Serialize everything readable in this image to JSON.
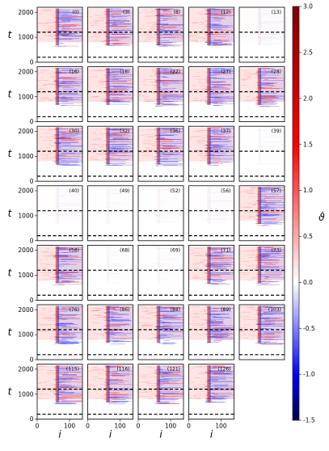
{
  "chart_data": {
    "type": "heatmap",
    "layout": {
      "rows": 7,
      "cols": 5
    },
    "panels": [
      "(0)",
      "(3)",
      "(8)",
      "(12)",
      "(13)",
      "(16)",
      "(18)",
      "(22)",
      "(27)",
      "(28)",
      "(30)",
      "(32)",
      "(36)",
      "(37)",
      "(39)",
      "(40)",
      "(49)",
      "(52)",
      "(56)",
      "(57)",
      "(58)",
      "(68)",
      "(69)",
      "(71)",
      "(73)",
      "(76)",
      "(86)",
      "(88)",
      "(89)",
      "(103)",
      "(115)",
      "(116)",
      "(121)",
      "(126)"
    ],
    "xlabel": "i",
    "ylabel": "t",
    "xlim": [
      0,
      140
    ],
    "ylim": [
      0,
      2200
    ],
    "xticks": [
      0,
      100
    ],
    "yticks": [
      0,
      1000,
      2000
    ],
    "reference_lines_t": [
      200,
      1200
    ],
    "colorbar": {
      "label": "ϑ̇",
      "min": -1.5,
      "max": 3.0,
      "ticks": [
        "-1.5",
        "-1.0",
        "-0.5",
        "0.0",
        "0.5",
        "1.0",
        "1.5",
        "2.0",
        "2.5",
        "3.0"
      ],
      "colors": [
        "#00004c",
        "#0000ff",
        "#ffffff",
        "#ff0000",
        "#800000"
      ]
    }
  }
}
